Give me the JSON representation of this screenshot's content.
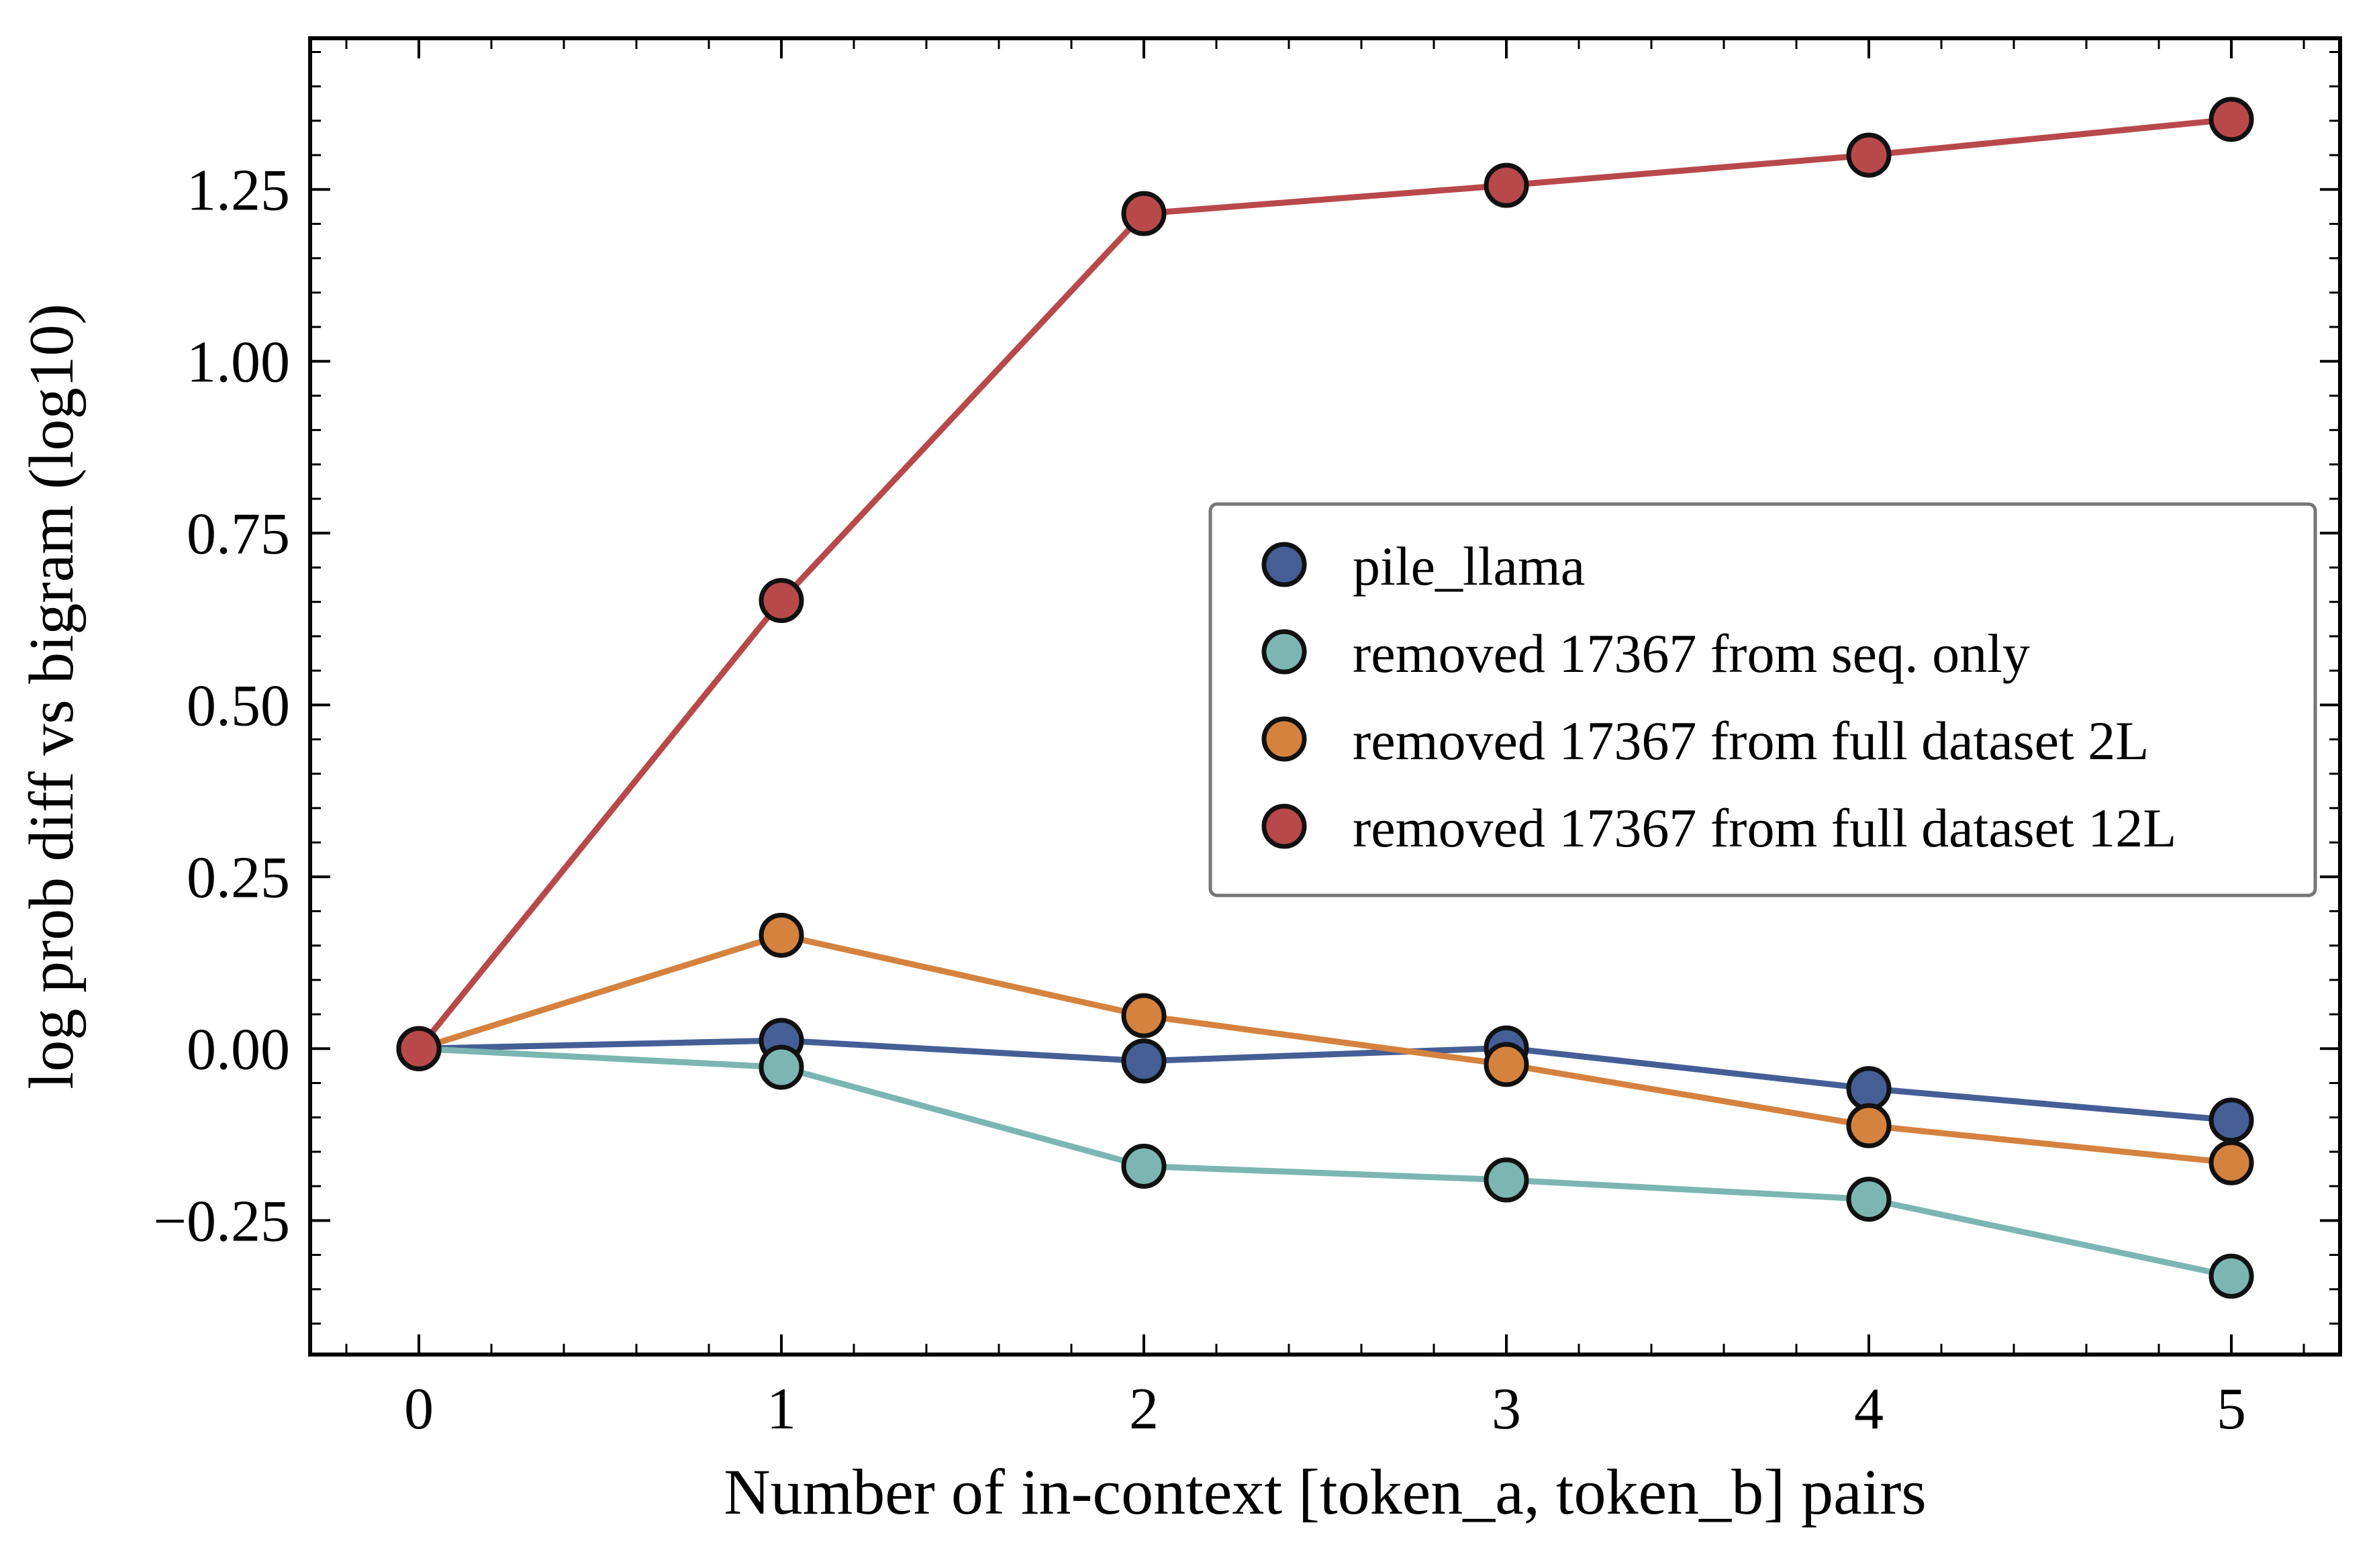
{
  "chart_data": {
    "type": "line",
    "title": "",
    "xlabel": "Number of in-context [token_a, token_b] pairs",
    "ylabel": "log prob diff vs bigram (log10)",
    "xlim": [
      -0.3,
      5.3
    ],
    "ylim": [
      -0.445,
      1.47
    ],
    "x_ticks": [
      0,
      1,
      2,
      3,
      4,
      5
    ],
    "x_tick_labels": [
      "0",
      "1",
      "2",
      "3",
      "4",
      "5"
    ],
    "y_ticks": [
      -0.25,
      0.0,
      0.25,
      0.5,
      0.75,
      1.0,
      1.25
    ],
    "y_tick_labels": [
      "−0.25",
      "0.00",
      "0.25",
      "0.50",
      "0.75",
      "1.00",
      "1.25"
    ],
    "grid": false,
    "legend_position": "center-right",
    "x": [
      0,
      1,
      2,
      3,
      4,
      5
    ],
    "series": [
      {
        "name": "pile_llama",
        "color": "#455f96",
        "values": [
          0.0,
          0.012,
          -0.018,
          0.001,
          -0.058,
          -0.104
        ]
      },
      {
        "name": "removed 17367 from seq. only",
        "color": "#7bb6b2",
        "values": [
          0.0,
          -0.027,
          -0.171,
          -0.191,
          -0.219,
          -0.331
        ]
      },
      {
        "name": "removed 17367 from full dataset 2L",
        "color": "#d5823f",
        "values": [
          0.0,
          0.165,
          0.048,
          -0.023,
          -0.112,
          -0.166
        ]
      },
      {
        "name": "removed 17367 from full dataset 12L",
        "color": "#b8494b",
        "values": [
          0.0,
          0.652,
          1.215,
          1.256,
          1.3,
          1.352
        ]
      }
    ]
  }
}
